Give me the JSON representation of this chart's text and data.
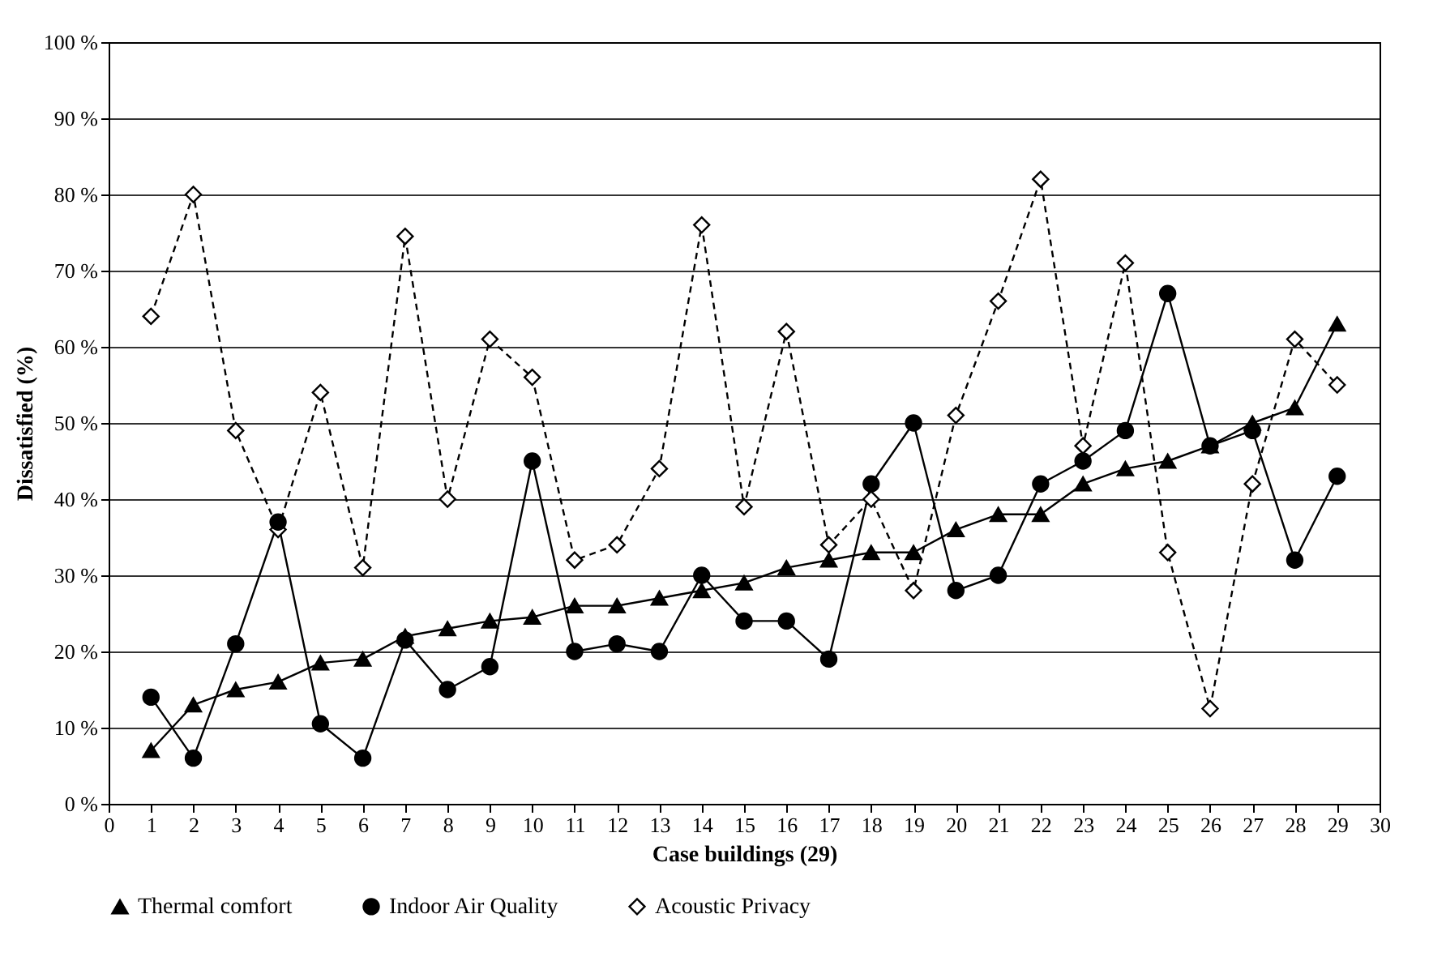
{
  "chart_data": {
    "type": "line",
    "xlabel": "Case buildings (29)",
    "ylabel": "Dissatisfied (%)",
    "x": [
      1,
      2,
      3,
      4,
      5,
      6,
      7,
      8,
      9,
      10,
      11,
      12,
      13,
      14,
      15,
      16,
      17,
      18,
      19,
      20,
      21,
      22,
      23,
      24,
      25,
      26,
      27,
      28,
      29
    ],
    "series": [
      {
        "name": "Thermal comfort",
        "color": "#000000",
        "marker": "triangle",
        "line_style": "solid",
        "values": [
          7,
          13,
          15,
          16,
          18.5,
          19,
          22,
          23,
          24,
          24.5,
          26,
          26,
          27,
          28,
          29,
          31,
          32,
          33,
          33,
          36,
          38,
          38,
          42,
          44,
          45,
          47,
          50,
          52,
          63
        ]
      },
      {
        "name": "Indoor Air Quality",
        "color": "#000000",
        "marker": "circle",
        "line_style": "solid",
        "values": [
          14,
          6,
          21,
          37,
          10.5,
          6,
          21.5,
          15,
          18,
          45,
          20,
          21,
          20,
          30,
          24,
          24,
          19,
          42,
          50,
          28,
          30,
          42,
          45,
          49,
          67,
          47,
          49,
          32,
          43
        ]
      },
      {
        "name": "Acoustic Privacy",
        "color": "#000000",
        "marker": "diamond",
        "line_style": "dashed",
        "values": [
          64,
          80,
          49,
          36,
          54,
          31,
          74.5,
          40,
          61,
          56,
          32,
          34,
          44,
          76,
          39,
          62,
          34,
          40,
          28,
          51,
          66,
          82,
          47,
          71,
          33,
          12.5,
          42,
          61,
          55
        ]
      }
    ],
    "xlim": [
      0,
      30
    ],
    "xticks": [
      0,
      1,
      2,
      3,
      4,
      5,
      6,
      7,
      8,
      9,
      10,
      11,
      12,
      13,
      14,
      15,
      16,
      17,
      18,
      19,
      20,
      21,
      22,
      23,
      24,
      25,
      26,
      27,
      28,
      29,
      30
    ],
    "ylim": [
      0,
      100
    ],
    "yticks": [
      {
        "value": 0,
        "label": "0 %"
      },
      {
        "value": 10,
        "label": "10 %"
      },
      {
        "value": 20,
        "label": "20 %"
      },
      {
        "value": 30,
        "label": "30 %"
      },
      {
        "value": 40,
        "label": "40 %"
      },
      {
        "value": 50,
        "label": "50 %"
      },
      {
        "value": 60,
        "label": "60 %"
      },
      {
        "value": 70,
        "label": "70 %"
      },
      {
        "value": 80,
        "label": "80 %"
      },
      {
        "value": 90,
        "label": "90 %"
      },
      {
        "value": 100,
        "label": "100 %"
      }
    ],
    "grid": "y",
    "legend": "bottom"
  }
}
